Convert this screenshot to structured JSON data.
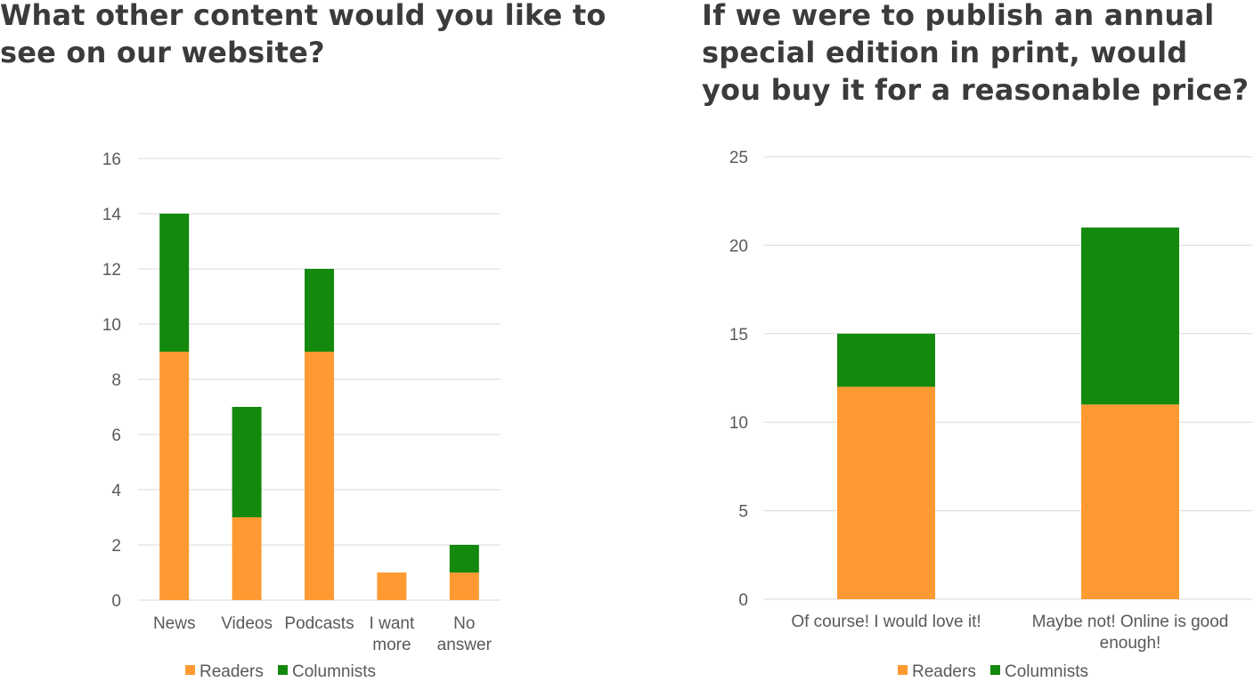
{
  "colors": {
    "readers": "#ff9a33",
    "columnists": "#138a0d",
    "grid": "#d9d9d9"
  },
  "chart_data": [
    {
      "type": "bar",
      "stacked": true,
      "title": "What other content would you like to see on our website?",
      "categories": [
        [
          "News"
        ],
        [
          "Videos"
        ],
        [
          "Podcasts"
        ],
        [
          "I want",
          "more"
        ],
        [
          "No",
          "answer"
        ]
      ],
      "series": [
        {
          "name": "Readers",
          "values": [
            9,
            3,
            9,
            1,
            1
          ]
        },
        {
          "name": "Columnists",
          "values": [
            5,
            4,
            3,
            0,
            1
          ]
        }
      ],
      "ylim": [
        0,
        16
      ],
      "yticks": [
        "0",
        "2",
        "4",
        "6",
        "8",
        "10",
        "12",
        "14",
        "16"
      ],
      "grid": true,
      "legend": "bottom"
    },
    {
      "type": "bar",
      "stacked": true,
      "title": "If we were to publish an annual special edition in print, would you buy it for a reasonable price?",
      "categories": [
        [
          "Of course! I would love it!"
        ],
        [
          "Maybe not! Online is good",
          "enough!"
        ]
      ],
      "series": [
        {
          "name": "Readers",
          "values": [
            12,
            11
          ]
        },
        {
          "name": "Columnists",
          "values": [
            3,
            10
          ]
        }
      ],
      "ylim": [
        0,
        25
      ],
      "yticks": [
        "0",
        "5",
        "10",
        "15",
        "20",
        "25"
      ],
      "grid": true,
      "legend": "bottom"
    }
  ]
}
